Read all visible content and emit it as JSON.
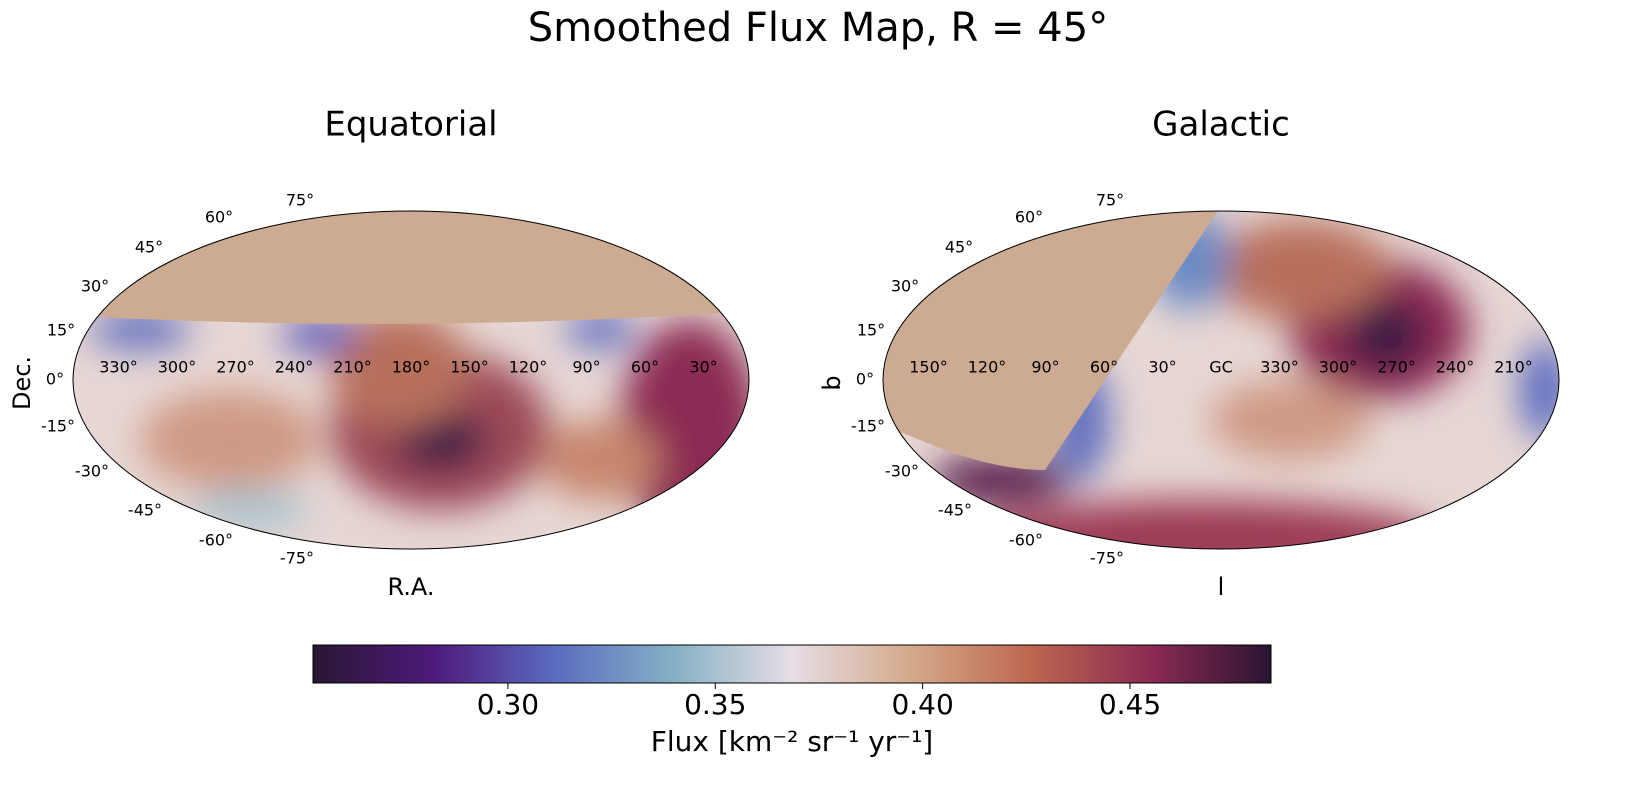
{
  "chart_data": {
    "type": "skymap",
    "title": "Smoothed Flux Map, R = 45°",
    "panels": [
      {
        "title": "Equatorial",
        "xlabel": "R.A.",
        "ylabel": "Dec.",
        "lon_labels": [
          "330°",
          "300°",
          "270°",
          "240°",
          "210°",
          "180°",
          "150°",
          "120°",
          "90°",
          "60°",
          "30°"
        ],
        "lat_labels": [
          "75°",
          "60°",
          "45°",
          "30°",
          "15°",
          "0°",
          "-15°",
          "-30°",
          "-45°",
          "-60°",
          "-75°"
        ]
      },
      {
        "title": "Galactic",
        "xlabel": "l",
        "ylabel": "b",
        "lon_labels": [
          "150°",
          "120°",
          "90°",
          "60°",
          "30°",
          "GC",
          "330°",
          "300°",
          "270°",
          "240°",
          "210°"
        ],
        "lat_labels": [
          "75°",
          "60°",
          "45°",
          "30°",
          "15°",
          "0°",
          "-15°",
          "-30°",
          "-45°",
          "-60°",
          "-75°"
        ]
      }
    ],
    "colorbar": {
      "label": "Flux [km⁻² sr⁻¹ yr⁻¹]",
      "lim": [
        0.253,
        0.484
      ],
      "ticks": [
        {
          "value": 0.3,
          "label": "0.30"
        },
        0.35,
        {
          "value": 0.4,
          "label": "0.40"
        },
        0.45
      ],
      "colormap": [
        "#2a1633",
        "#4d1a7a",
        "#5a6ac0",
        "#84b0c4",
        "#e6dde5",
        "#d4a98a",
        "#bd6650",
        "#8c2a52",
        "#2a1433"
      ]
    }
  }
}
